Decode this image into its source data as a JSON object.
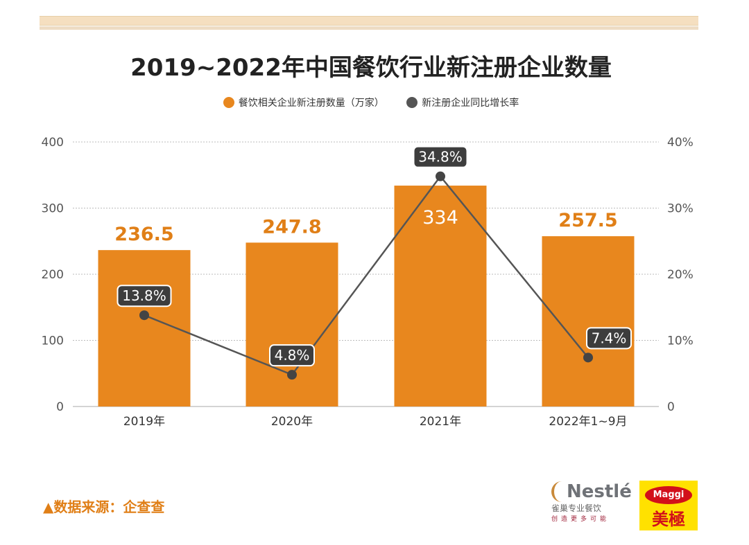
{
  "chart_data": {
    "type": "bar+line",
    "title": "2019~2022年中国餐饮行业新注册企业数量",
    "categories": [
      "2019年",
      "2020年",
      "2021年",
      "2022年1~9月"
    ],
    "series": [
      {
        "name": "餐饮相关企业新注册数量（万家）",
        "type": "bar",
        "axis": "left",
        "values": [
          236.5,
          247.8,
          334,
          257.5
        ],
        "labels": [
          "236.5",
          "247.8",
          "334",
          "257.5"
        ],
        "color": "#e8871e"
      },
      {
        "name": "新注册企业同比增长率",
        "type": "line",
        "axis": "right",
        "values": [
          13.8,
          4.8,
          34.8,
          7.4
        ],
        "labels": [
          "13.8%",
          "4.8%",
          "34.8%",
          "7.4%"
        ],
        "color": "#555555"
      }
    ],
    "left_axis": {
      "ylim": [
        0,
        400
      ],
      "ticks": [
        "0",
        "100",
        "200",
        "300",
        "400"
      ]
    },
    "right_axis": {
      "ylim": [
        0,
        40
      ],
      "ticks": [
        "0",
        "10%",
        "20%",
        "30%",
        "40%"
      ]
    },
    "grid": true,
    "legend": "top"
  },
  "footer": {
    "source": "▲数据来源：企查查"
  },
  "logos": {
    "nestle": "Nestlé",
    "nestle_cn": "雀巢专业餐饮",
    "nestle_slogan": "创造更多可能",
    "maggi": "Maggi",
    "maggi_cn": "美極"
  }
}
